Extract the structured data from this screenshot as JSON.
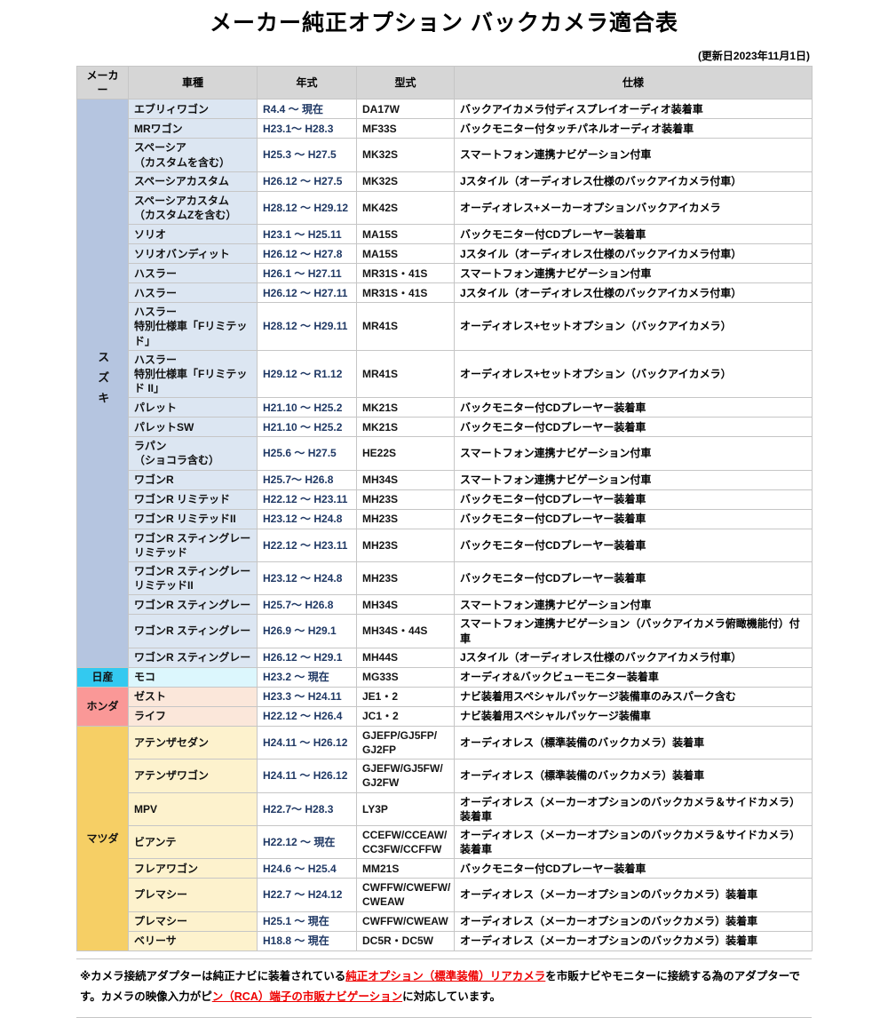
{
  "title": "メーカー純正オプション バックカメラ適合表",
  "updated": "(更新日2023年11月1日)",
  "columns": [
    "メーカー",
    "車種",
    "年式",
    "型式",
    "仕様"
  ],
  "colors": {
    "header_bg": "#d6d6d6",
    "suzuki_maker": "#b5c5e0",
    "suzuki_row": "#dce6f2",
    "nissan_maker": "#33c9f0",
    "nissan_row": "#dcf7fd",
    "honda_maker": "#fa9897",
    "honda_row": "#fbe7da",
    "mazda_maker": "#f6cf65",
    "mazda_row": "#fdf2cd",
    "year_text": "#1f3864",
    "link_red": "#ee0000"
  },
  "sections": [
    {
      "maker": "スズキ",
      "maker_bg": "#b5c5e0",
      "row_bg": "#dce6f2",
      "rows": [
        {
          "model": "エブリィワゴン",
          "year": "R4.4 ～ 現在",
          "code": "DA17W",
          "spec": "バックアイカメラ付ディスプレイオーディオ装着車"
        },
        {
          "model": "MRワゴン",
          "year": "H23.1～ H28.3",
          "code": "MF33S",
          "spec": "バックモニター付タッチパネルオーディオ装着車"
        },
        {
          "model": "スペーシア\n（カスタムを含む）",
          "year": "H25.3 ～ H27.5",
          "code": "MK32S",
          "spec": "スマートフォン連携ナビゲーション付車"
        },
        {
          "model": "スペーシアカスタム",
          "year": "H26.12 ～ H27.5",
          "code": "MK32S",
          "spec": "Jスタイル（オーディオレス仕様のバックアイカメラ付車）"
        },
        {
          "model": "スペーシアカスタム\n（カスタムZを含む）",
          "year": "H28.12 ～ H29.12",
          "code": "MK42S",
          "spec": "オーディオレス+メーカーオプションバックアイカメラ"
        },
        {
          "model": "ソリオ",
          "year": "H23.1 ～ H25.11",
          "code": "MA15S",
          "spec": "バックモニター付CDプレーヤー装着車"
        },
        {
          "model": "ソリオバンディット",
          "year": "H26.12 ～ H27.8",
          "code": "MA15S",
          "spec": "Jスタイル（オーディオレス仕様のバックアイカメラ付車）"
        },
        {
          "model": "ハスラー",
          "year": "H26.1 ～ H27.11",
          "code": "MR31S・41S",
          "spec": "スマートフォン連携ナビゲーション付車"
        },
        {
          "model": "ハスラー",
          "year": "H26.12 ～ H27.11",
          "code": "MR31S・41S",
          "spec": "Jスタイル（オーディオレス仕様のバックアイカメラ付車）"
        },
        {
          "model": "ハスラー\n特別仕様車「Fリミテッド」",
          "year": "H28.12 ～ H29.11",
          "code": "MR41S",
          "spec": "オーディオレス+セットオプション（バックアイカメラ）"
        },
        {
          "model": "ハスラー\n特別仕様車「Fリミテッド II」",
          "year": "H29.12 ～ R1.12",
          "code": "MR41S",
          "spec": "オーディオレス+セットオプション（バックアイカメラ）"
        },
        {
          "model": "パレット",
          "year": "H21.10 ～ H25.2",
          "code": "MK21S",
          "spec": "バックモニター付CDプレーヤー装着車"
        },
        {
          "model": "パレットSW",
          "year": "H21.10 ～ H25.2",
          "code": "MK21S",
          "spec": "バックモニター付CDプレーヤー装着車"
        },
        {
          "model": "ラパン\n（ショコラ含む）",
          "year": "H25.6 ～ H27.5",
          "code": "HE22S",
          "spec": "スマートフォン連携ナビゲーション付車"
        },
        {
          "model": "ワゴンR",
          "year": "H25.7～ H26.8",
          "code": "MH34S",
          "spec": "スマートフォン連携ナビゲーション付車"
        },
        {
          "model": "ワゴンR リミテッド",
          "year": "H22.12 ～ H23.11",
          "code": "MH23S",
          "spec": "バックモニター付CDプレーヤー装着車"
        },
        {
          "model": "ワゴンR リミテッドII",
          "year": "H23.12 ～ H24.8",
          "code": "MH23S",
          "spec": "バックモニター付CDプレーヤー装着車"
        },
        {
          "model": "ワゴンR スティングレー\nリミテッド",
          "year": "H22.12 ～ H23.11",
          "code": "MH23S",
          "spec": "バックモニター付CDプレーヤー装着車"
        },
        {
          "model": "ワゴンR スティングレー\nリミテッドII",
          "year": "H23.12 ～ H24.8",
          "code": "MH23S",
          "spec": "バックモニター付CDプレーヤー装着車"
        },
        {
          "model": "ワゴンR スティングレー",
          "year": "H25.7～ H26.8",
          "code": "MH34S",
          "spec": "スマートフォン連携ナビゲーション付車"
        },
        {
          "model": "ワゴンR スティングレー",
          "year": "H26.9 ～ H29.1",
          "code": "MH34S・44S",
          "spec": "スマートフォン連携ナビゲーション（バックアイカメラ俯瞰機能付）付車"
        },
        {
          "model": "ワゴンR スティングレー",
          "year": "H26.12 ～ H29.1",
          "code": "MH44S",
          "spec": "Jスタイル（オーディオレス仕様のバックアイカメラ付車）"
        }
      ]
    },
    {
      "maker": "日産",
      "maker_bg": "#33c9f0",
      "row_bg": "#dcf7fd",
      "rows": [
        {
          "model": "モコ",
          "year": "H23.2 ～ 現在",
          "code": "MG33S",
          "spec": "オーディオ&バックビューモニター装着車"
        }
      ]
    },
    {
      "maker": "ホンダ",
      "maker_bg": "#fa9897",
      "row_bg": "#fbe7da",
      "rows": [
        {
          "model": "ゼスト",
          "year": "H23.3 ～ H24.11",
          "code": "JE1・2",
          "spec": "ナビ装着用スペシャルパッケージ装備車のみスパーク含む"
        },
        {
          "model": "ライフ",
          "year": "H22.12 ～ H26.4",
          "code": "JC1・2",
          "spec": "ナビ装着用スペシャルパッケージ装備車"
        }
      ]
    },
    {
      "maker": "マツダ",
      "maker_bg": "#f6cf65",
      "row_bg": "#fdf2cd",
      "rows": [
        {
          "model": "アテンザセダン",
          "year": "H24.11 ～ H26.12",
          "code": "GJEFP/GJ5FP/\nGJ2FP",
          "spec": "オーディオレス（標準装備のバックカメラ）装着車"
        },
        {
          "model": "アテンザワゴン",
          "year": "H24.11 ～ H26.12",
          "code": "GJEFW/GJ5FW/\nGJ2FW",
          "spec": "オーディオレス（標準装備のバックカメラ）装着車"
        },
        {
          "model": "MPV",
          "year": "H22.7～ H28.3",
          "code": "LY3P",
          "spec": "オーディオレス（メーカーオプションのバックカメラ＆サイドカメラ）装着車"
        },
        {
          "model": "ビアンテ",
          "year": "H22.12 ～ 現在",
          "code": "CCEFW/CCEAW/\nCC3FW/CCFFW",
          "spec": "オーディオレス（メーカーオプションのバックカメラ＆サイドカメラ）装着車"
        },
        {
          "model": "フレアワゴン",
          "year": "H24.6 ～ H25.4",
          "code": "MM21S",
          "spec": "バックモニター付CDプレーヤー装着車"
        },
        {
          "model": "プレマシー",
          "year": "H22.7 ～ H24.12",
          "code": "CWFFW/CWEFW/\nCWEAW",
          "spec": "オーディオレス（メーカーオプションのバックカメラ）装着車"
        },
        {
          "model": "プレマシー",
          "year": "H25.1 ～ 現在",
          "code": "CWFFW/CWEAW",
          "spec": "オーディオレス（メーカーオプションのバックカメラ）装着車"
        },
        {
          "model": "ベリーサ",
          "year": "H18.8 ～ 現在",
          "code": "DC5R・DC5W",
          "spec": "オーディオレス（メーカーオプションのバックカメラ）装着車"
        }
      ]
    }
  ],
  "note": {
    "pre": "※カメラ接続アダプターは純正ナビに装着されている",
    "link1": "純正オプション（標準装備）リアカメラ",
    "mid": "を市販ナビやモニターに接続する為のアダプターです。カメラの映像入力がピ",
    "link2": "ン（RCA）端子の市販ナビゲーション",
    "post": "に対応しています。"
  }
}
